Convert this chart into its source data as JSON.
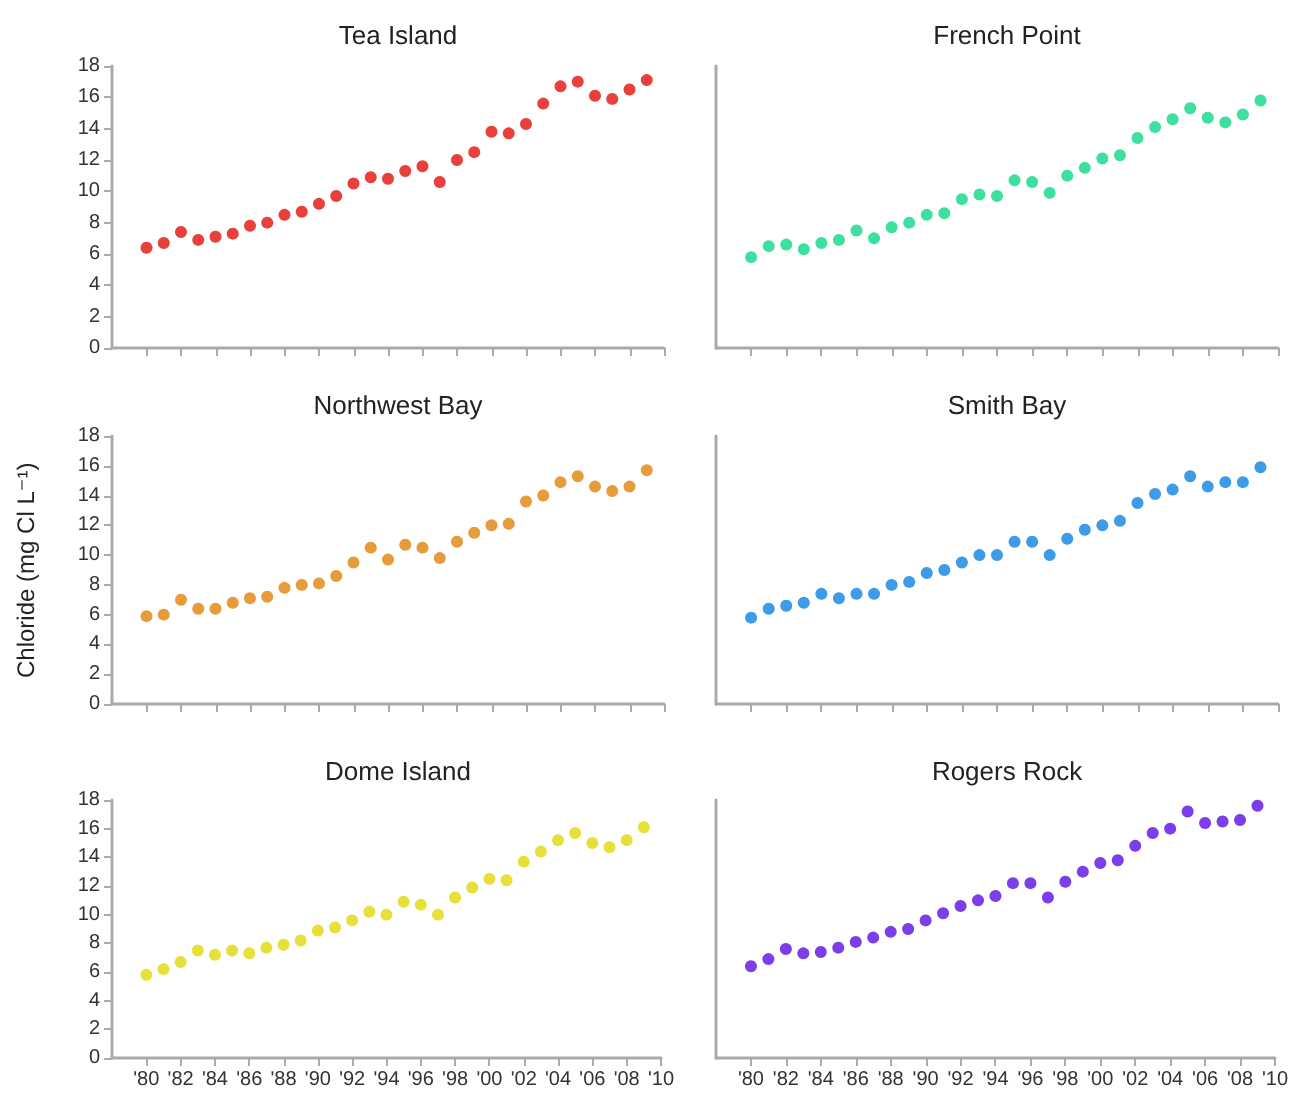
{
  "chart_data": [
    {
      "type": "scatter",
      "title": "Tea Island",
      "color": "#e8413c",
      "marker": "circle",
      "grid": false,
      "tick_labels": "y",
      "xlim": [
        1978,
        2010
      ],
      "xticks": [
        {
          "value": 1980,
          "label": null
        },
        {
          "value": 1982,
          "label": null
        },
        {
          "value": 1984,
          "label": null
        },
        {
          "value": 1986,
          "label": null
        },
        {
          "value": 1988,
          "label": null
        },
        {
          "value": 1990,
          "label": null
        },
        {
          "value": 1992,
          "label": null
        },
        {
          "value": 1994,
          "label": null
        },
        {
          "value": 1996,
          "label": null
        },
        {
          "value": 1998,
          "label": null
        },
        {
          "value": 2000,
          "label": null
        },
        {
          "value": 2002,
          "label": null
        },
        {
          "value": 2004,
          "label": null
        },
        {
          "value": 2006,
          "label": null
        },
        {
          "value": 2008,
          "label": null
        },
        {
          "value": 2010,
          "label": null
        }
      ],
      "ylim": [
        0,
        18
      ],
      "yticks": [
        0,
        2,
        4,
        6,
        8,
        10,
        12,
        14,
        16,
        18
      ],
      "x": [
        1980,
        1981,
        1982,
        1983,
        1984,
        1985,
        1986,
        1987,
        1988,
        1989,
        1990,
        1991,
        1992,
        1993,
        1994,
        1995,
        1996,
        1997,
        1998,
        1999,
        2000,
        2001,
        2002,
        2003,
        2004,
        2005,
        2006,
        2007,
        2008,
        2009
      ],
      "values": [
        6.4,
        6.7,
        7.4,
        6.9,
        7.1,
        7.3,
        7.8,
        8.0,
        8.5,
        8.7,
        9.2,
        9.7,
        10.5,
        10.9,
        10.8,
        11.3,
        11.6,
        10.6,
        12.0,
        12.5,
        13.8,
        13.7,
        14.3,
        15.6,
        16.7,
        17.0,
        16.1,
        15.9,
        16.5,
        17.1
      ]
    },
    {
      "type": "scatter",
      "title": "French Point",
      "color": "#3ee0a0",
      "marker": "circle",
      "grid": false,
      "tick_labels": false,
      "xlim": [
        1978,
        2010
      ],
      "xticks": [
        {
          "value": 1980,
          "label": null
        },
        {
          "value": 1982,
          "label": null
        },
        {
          "value": 1984,
          "label": null
        },
        {
          "value": 1986,
          "label": null
        },
        {
          "value": 1988,
          "label": null
        },
        {
          "value": 1990,
          "label": null
        },
        {
          "value": 1992,
          "label": null
        },
        {
          "value": 1994,
          "label": null
        },
        {
          "value": 1996,
          "label": null
        },
        {
          "value": 1998,
          "label": null
        },
        {
          "value": 2000,
          "label": null
        },
        {
          "value": 2002,
          "label": null
        },
        {
          "value": 2004,
          "label": null
        },
        {
          "value": 2006,
          "label": null
        },
        {
          "value": 2008,
          "label": null
        },
        {
          "value": 2010,
          "label": null
        }
      ],
      "ylim": [
        0,
        18
      ],
      "x": [
        1980,
        1981,
        1982,
        1983,
        1984,
        1985,
        1986,
        1987,
        1988,
        1989,
        1990,
        1991,
        1992,
        1993,
        1994,
        1995,
        1996,
        1997,
        1998,
        1999,
        2000,
        2001,
        2002,
        2003,
        2004,
        2005,
        2006,
        2007,
        2008,
        2009
      ],
      "values": [
        5.8,
        6.5,
        6.6,
        6.3,
        6.7,
        6.9,
        7.5,
        7.0,
        7.7,
        8.0,
        8.5,
        8.6,
        9.5,
        9.8,
        9.7,
        10.7,
        10.6,
        9.9,
        11.0,
        11.5,
        12.1,
        12.3,
        13.4,
        14.1,
        14.6,
        15.3,
        14.7,
        14.4,
        14.9,
        15.8
      ]
    },
    {
      "type": "scatter",
      "title": "Northwest Bay",
      "ylabel": "Chloride (mg Cl L⁻¹)",
      "color": "#e89b3a",
      "marker": "circle",
      "grid": false,
      "tick_labels": "y",
      "xlim": [
        1978,
        2010
      ],
      "xticks": [
        {
          "value": 1980,
          "label": null
        },
        {
          "value": 1982,
          "label": null
        },
        {
          "value": 1984,
          "label": null
        },
        {
          "value": 1986,
          "label": null
        },
        {
          "value": 1988,
          "label": null
        },
        {
          "value": 1990,
          "label": null
        },
        {
          "value": 1992,
          "label": null
        },
        {
          "value": 1994,
          "label": null
        },
        {
          "value": 1996,
          "label": null
        },
        {
          "value": 1998,
          "label": null
        },
        {
          "value": 2000,
          "label": null
        },
        {
          "value": 2002,
          "label": null
        },
        {
          "value": 2004,
          "label": null
        },
        {
          "value": 2006,
          "label": null
        },
        {
          "value": 2008,
          "label": null
        },
        {
          "value": 2010,
          "label": null
        }
      ],
      "ylim": [
        0,
        18
      ],
      "yticks": [
        0,
        2,
        4,
        6,
        8,
        10,
        12,
        14,
        16,
        18
      ],
      "x": [
        1980,
        1981,
        1982,
        1983,
        1984,
        1985,
        1986,
        1987,
        1988,
        1989,
        1990,
        1991,
        1992,
        1993,
        1994,
        1995,
        1996,
        1997,
        1998,
        1999,
        2000,
        2001,
        2002,
        2003,
        2004,
        2005,
        2006,
        2007,
        2008,
        2009
      ],
      "values": [
        5.9,
        6.0,
        7.0,
        6.4,
        6.4,
        6.8,
        7.1,
        7.2,
        7.8,
        8.0,
        8.1,
        8.6,
        9.5,
        10.5,
        9.7,
        10.7,
        10.5,
        9.8,
        10.9,
        11.5,
        12.0,
        12.1,
        13.6,
        14.0,
        14.9,
        15.3,
        14.6,
        14.3,
        14.6,
        15.7
      ]
    },
    {
      "type": "scatter",
      "title": "Smith Bay",
      "color": "#3e9be8",
      "marker": "circle",
      "grid": false,
      "tick_labels": false,
      "xlim": [
        1978,
        2010
      ],
      "xticks": [
        {
          "value": 1980,
          "label": null
        },
        {
          "value": 1982,
          "label": null
        },
        {
          "value": 1984,
          "label": null
        },
        {
          "value": 1986,
          "label": null
        },
        {
          "value": 1988,
          "label": null
        },
        {
          "value": 1990,
          "label": null
        },
        {
          "value": 1992,
          "label": null
        },
        {
          "value": 1994,
          "label": null
        },
        {
          "value": 1996,
          "label": null
        },
        {
          "value": 1998,
          "label": null
        },
        {
          "value": 2000,
          "label": null
        },
        {
          "value": 2002,
          "label": null
        },
        {
          "value": 2004,
          "label": null
        },
        {
          "value": 2006,
          "label": null
        },
        {
          "value": 2008,
          "label": null
        },
        {
          "value": 2010,
          "label": null
        }
      ],
      "ylim": [
        0,
        18
      ],
      "x": [
        1980,
        1981,
        1982,
        1983,
        1984,
        1985,
        1986,
        1987,
        1988,
        1989,
        1990,
        1991,
        1992,
        1993,
        1994,
        1995,
        1996,
        1997,
        1998,
        1999,
        2000,
        2001,
        2002,
        2003,
        2004,
        2005,
        2006,
        2007,
        2008,
        2009
      ],
      "values": [
        5.8,
        6.4,
        6.6,
        6.8,
        7.4,
        7.1,
        7.4,
        7.4,
        8.0,
        8.2,
        8.8,
        9.0,
        9.5,
        10.0,
        10.0,
        10.9,
        10.9,
        10.0,
        11.1,
        11.7,
        12.0,
        12.3,
        13.5,
        14.1,
        14.4,
        15.3,
        14.6,
        14.9,
        14.9,
        15.9
      ]
    },
    {
      "type": "scatter",
      "title": "Dome Island",
      "color": "#e8e03a",
      "marker": "circle",
      "grid": false,
      "xlim": [
        1978,
        2010
      ],
      "xticks": [
        {
          "value": 1980,
          "label": "'80"
        },
        {
          "value": 1982,
          "label": "'82"
        },
        {
          "value": 1984,
          "label": "'84"
        },
        {
          "value": 1986,
          "label": "'86"
        },
        {
          "value": 1988,
          "label": "'88"
        },
        {
          "value": 1990,
          "label": "'90"
        },
        {
          "value": 1992,
          "label": "'92"
        },
        {
          "value": 1994,
          "label": "'94"
        },
        {
          "value": 1996,
          "label": "'96"
        },
        {
          "value": 1998,
          "label": "'98"
        },
        {
          "value": 2000,
          "label": "'00"
        },
        {
          "value": 2002,
          "label": "'02"
        },
        {
          "value": 2004,
          "label": "'04"
        },
        {
          "value": 2006,
          "label": "'06"
        },
        {
          "value": 2008,
          "label": "'08"
        },
        {
          "value": 2010,
          "label": "'10"
        }
      ],
      "ylim": [
        0,
        18
      ],
      "yticks": [
        0,
        2,
        4,
        6,
        8,
        10,
        12,
        14,
        16,
        18
      ],
      "x": [
        1980,
        1981,
        1982,
        1983,
        1984,
        1985,
        1986,
        1987,
        1988,
        1989,
        1990,
        1991,
        1992,
        1993,
        1994,
        1995,
        1996,
        1997,
        1998,
        1999,
        2000,
        2001,
        2002,
        2003,
        2004,
        2005,
        2006,
        2007,
        2008,
        2009
      ],
      "values": [
        5.8,
        6.2,
        6.7,
        7.5,
        7.2,
        7.5,
        7.3,
        7.7,
        7.9,
        8.2,
        8.9,
        9.1,
        9.6,
        10.2,
        10.0,
        10.9,
        10.7,
        10.0,
        11.2,
        11.9,
        12.5,
        12.4,
        13.7,
        14.4,
        15.2,
        15.7,
        15.0,
        14.7,
        15.2,
        16.1
      ]
    },
    {
      "type": "scatter",
      "title": "Rogers Rock",
      "color": "#7b3ee8",
      "marker": "circle",
      "grid": false,
      "tick_labels": "x",
      "xlim": [
        1978,
        2010
      ],
      "xticks": [
        {
          "value": 1980,
          "label": "'80"
        },
        {
          "value": 1982,
          "label": "'82"
        },
        {
          "value": 1984,
          "label": "'84"
        },
        {
          "value": 1986,
          "label": "'86"
        },
        {
          "value": 1988,
          "label": "'88"
        },
        {
          "value": 1990,
          "label": "'90"
        },
        {
          "value": 1992,
          "label": "'92"
        },
        {
          "value": 1994,
          "label": "'94"
        },
        {
          "value": 1996,
          "label": "'96"
        },
        {
          "value": 1998,
          "label": "'98"
        },
        {
          "value": 2000,
          "label": "'00"
        },
        {
          "value": 2002,
          "label": "'02"
        },
        {
          "value": 2004,
          "label": "'04"
        },
        {
          "value": 2006,
          "label": "'06"
        },
        {
          "value": 2008,
          "label": "'08"
        },
        {
          "value": 2010,
          "label": "'10"
        }
      ],
      "ylim": [
        0,
        18
      ],
      "x": [
        1980,
        1981,
        1982,
        1983,
        1984,
        1985,
        1986,
        1987,
        1988,
        1989,
        1990,
        1991,
        1992,
        1993,
        1994,
        1995,
        1996,
        1997,
        1998,
        1999,
        2000,
        2001,
        2002,
        2003,
        2004,
        2005,
        2006,
        2007,
        2008,
        2009
      ],
      "values": [
        6.4,
        6.9,
        7.6,
        7.3,
        7.4,
        7.7,
        8.1,
        8.4,
        8.8,
        9.0,
        9.6,
        10.1,
        10.6,
        11.0,
        11.3,
        12.2,
        12.2,
        11.2,
        12.3,
        13.0,
        13.6,
        13.8,
        14.8,
        15.7,
        16.0,
        17.2,
        16.4,
        16.5,
        16.6,
        17.6
      ]
    }
  ]
}
